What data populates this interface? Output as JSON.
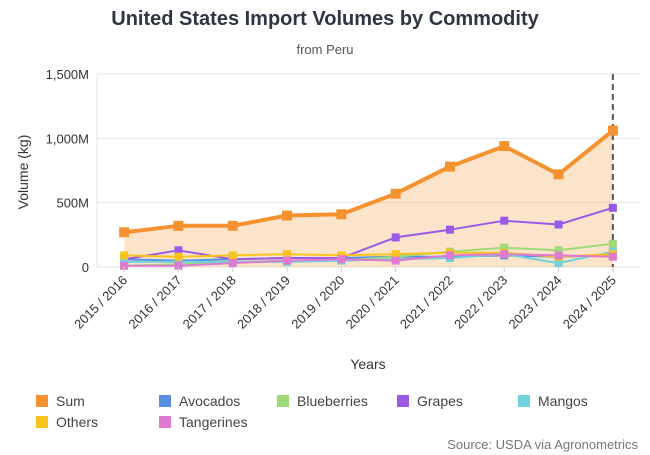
{
  "chart_data": {
    "type": "line",
    "title": "United States Import Volumes by Commodity",
    "subtitle": "from Peru",
    "xlabel": "Years",
    "ylabel": "Volume (kg)",
    "ylim": [
      0,
      1500000000
    ],
    "y_ticks": [
      {
        "value": 0,
        "label": "0"
      },
      {
        "value": 500000000,
        "label": "500M"
      },
      {
        "value": 1000000000,
        "label": "1,000M"
      },
      {
        "value": 1500000000,
        "label": "1,500M"
      }
    ],
    "categories": [
      "2015 / 2016",
      "2016 / 2017",
      "2017 / 2018",
      "2018 / 2019",
      "2019 / 2020",
      "2020 / 2021",
      "2021 / 2022",
      "2022 / 2023",
      "2023 / 2024",
      "2024 / 2025"
    ],
    "grid": "horizontal",
    "legend_position": "bottom",
    "series": [
      {
        "name": "Sum",
        "color": "#f5922f",
        "area": true,
        "values": [
          270000000,
          320000000,
          320000000,
          400000000,
          410000000,
          570000000,
          780000000,
          940000000,
          720000000,
          1060000000
        ]
      },
      {
        "name": "Avocados",
        "color": "#5b8fe0",
        "values": [
          60000000,
          50000000,
          60000000,
          70000000,
          70000000,
          80000000,
          80000000,
          90000000,
          80000000,
          90000000
        ]
      },
      {
        "name": "Blueberries",
        "color": "#9ed97a",
        "values": [
          10000000,
          20000000,
          40000000,
          50000000,
          50000000,
          80000000,
          120000000,
          150000000,
          130000000,
          180000000
        ]
      },
      {
        "name": "Grapes",
        "color": "#9b59e8",
        "values": [
          60000000,
          130000000,
          60000000,
          70000000,
          70000000,
          230000000,
          290000000,
          360000000,
          330000000,
          460000000
        ]
      },
      {
        "name": "Mangos",
        "color": "#6fd3dc",
        "values": [
          40000000,
          40000000,
          40000000,
          40000000,
          50000000,
          60000000,
          70000000,
          100000000,
          30000000,
          120000000
        ]
      },
      {
        "name": "Others",
        "color": "#f7c31c",
        "values": [
          90000000,
          80000000,
          90000000,
          100000000,
          90000000,
          100000000,
          110000000,
          110000000,
          80000000,
          100000000
        ]
      },
      {
        "name": "Tangerines",
        "color": "#e07ad0",
        "values": [
          10000000,
          10000000,
          30000000,
          50000000,
          60000000,
          50000000,
          90000000,
          100000000,
          90000000,
          80000000
        ]
      }
    ],
    "reference_line": {
      "category": "2024 / 2025",
      "style": "dashed"
    }
  },
  "source": "Source: USDA via Agronometrics"
}
